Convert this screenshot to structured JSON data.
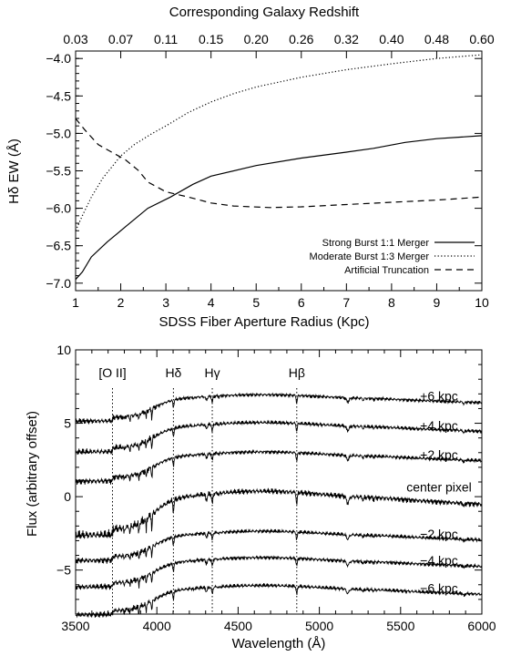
{
  "chart_data": [
    {
      "type": "line",
      "title": "",
      "top_axis_label": "Corresponding Galaxy Redshift",
      "top_ticks": [
        {
          "x": 1.0,
          "label": "0.03"
        },
        {
          "x": 2.0,
          "label": "0.07"
        },
        {
          "x": 3.0,
          "label": "0.11"
        },
        {
          "x": 4.0,
          "label": "0.15"
        },
        {
          "x": 5.0,
          "label": "0.20"
        },
        {
          "x": 6.0,
          "label": "0.26"
        },
        {
          "x": 7.0,
          "label": "0.32"
        },
        {
          "x": 8.0,
          "label": "0.40"
        },
        {
          "x": 9.0,
          "label": "0.48"
        },
        {
          "x": 10.0,
          "label": "0.60"
        }
      ],
      "xlabel": "SDSS Fiber Aperture Radius (Kpc)",
      "ylabel": "Hδ EW (Å)",
      "xlim": [
        1,
        10
      ],
      "ylim": [
        -7.1,
        -3.9
      ],
      "xticks": [
        1,
        2,
        3,
        4,
        5,
        6,
        7,
        8,
        9,
        10
      ],
      "yticks": [
        -7.0,
        -6.5,
        -6.0,
        -5.5,
        -5.0,
        -4.5,
        -4.0
      ],
      "ytick_labels": [
        "−7.0",
        "−6.5",
        "−6.0",
        "−5.5",
        "−5.0",
        "−4.5",
        "−4.0"
      ],
      "legend_position": "bottom-right",
      "series": [
        {
          "name": "Strong Burst 1:1 Merger",
          "style": "solid",
          "x": [
            1.0,
            1.15,
            1.35,
            1.7,
            2.1,
            2.6,
            3.1,
            3.6,
            4.0,
            5.0,
            6.0,
            7.0,
            7.6,
            8.3,
            9.0,
            10.0
          ],
          "y": [
            -6.95,
            -6.85,
            -6.65,
            -6.45,
            -6.25,
            -6.0,
            -5.85,
            -5.68,
            -5.57,
            -5.43,
            -5.33,
            -5.25,
            -5.2,
            -5.12,
            -5.07,
            -5.03
          ]
        },
        {
          "name": "Moderate Burst 1:3 Merger",
          "style": "dotted",
          "x": [
            1.0,
            1.15,
            1.35,
            1.6,
            2.0,
            2.3,
            2.7,
            3.0,
            3.5,
            4.0,
            4.5,
            5.0,
            6.0,
            7.0,
            8.0,
            9.0,
            10.0
          ],
          "y": [
            -6.3,
            -6.1,
            -5.85,
            -5.6,
            -5.3,
            -5.15,
            -5.0,
            -4.9,
            -4.72,
            -4.58,
            -4.47,
            -4.38,
            -4.25,
            -4.15,
            -4.07,
            -4.0,
            -3.95
          ]
        },
        {
          "name": "Artificial Truncation",
          "style": "dashed",
          "x": [
            1.0,
            1.2,
            1.5,
            1.8,
            2.1,
            2.4,
            2.6,
            3.0,
            3.5,
            4.0,
            4.5,
            5.3,
            6.0,
            7.0,
            8.0,
            9.0,
            10.0
          ],
          "y": [
            -4.8,
            -4.95,
            -5.15,
            -5.25,
            -5.35,
            -5.5,
            -5.65,
            -5.78,
            -5.85,
            -5.93,
            -5.97,
            -5.99,
            -5.98,
            -5.95,
            -5.92,
            -5.89,
            -5.85
          ]
        }
      ]
    },
    {
      "type": "line",
      "title": "",
      "xlabel": "Wavelength (Å)",
      "ylabel": "Flux (arbitrary offset)",
      "xlim": [
        3500,
        6000
      ],
      "ylim": [
        -8,
        10
      ],
      "xticks": [
        3500,
        4000,
        4500,
        5000,
        5500,
        6000
      ],
      "yticks": [
        -5,
        0,
        5,
        10
      ],
      "ytick_labels": [
        "−5",
        "0",
        "5",
        "10"
      ],
      "markers": [
        {
          "wavelength": 3727,
          "label": "[O II]"
        },
        {
          "wavelength": 4102,
          "label": "Hδ"
        },
        {
          "wavelength": 4341,
          "label": "Hγ"
        },
        {
          "wavelength": 4861,
          "label": "Hβ"
        }
      ],
      "series": [
        {
          "name": "+6 kpc",
          "offset": 6.0,
          "depth": 0.9
        },
        {
          "name": "+4 kpc",
          "offset": 4.0,
          "depth": 1.0
        },
        {
          "name": "+2 kpc",
          "offset": 2.0,
          "depth": 1.0
        },
        {
          "name": "center pixel",
          "offset": -1.2,
          "depth": 1.5
        },
        {
          "name": "−2 kpc",
          "offset": -3.4,
          "depth": 1.0
        },
        {
          "name": "−4 kpc",
          "offset": -5.2,
          "depth": 1.0
        },
        {
          "name": "−6 kpc",
          "offset": -7.1,
          "depth": 1.0
        }
      ]
    }
  ]
}
